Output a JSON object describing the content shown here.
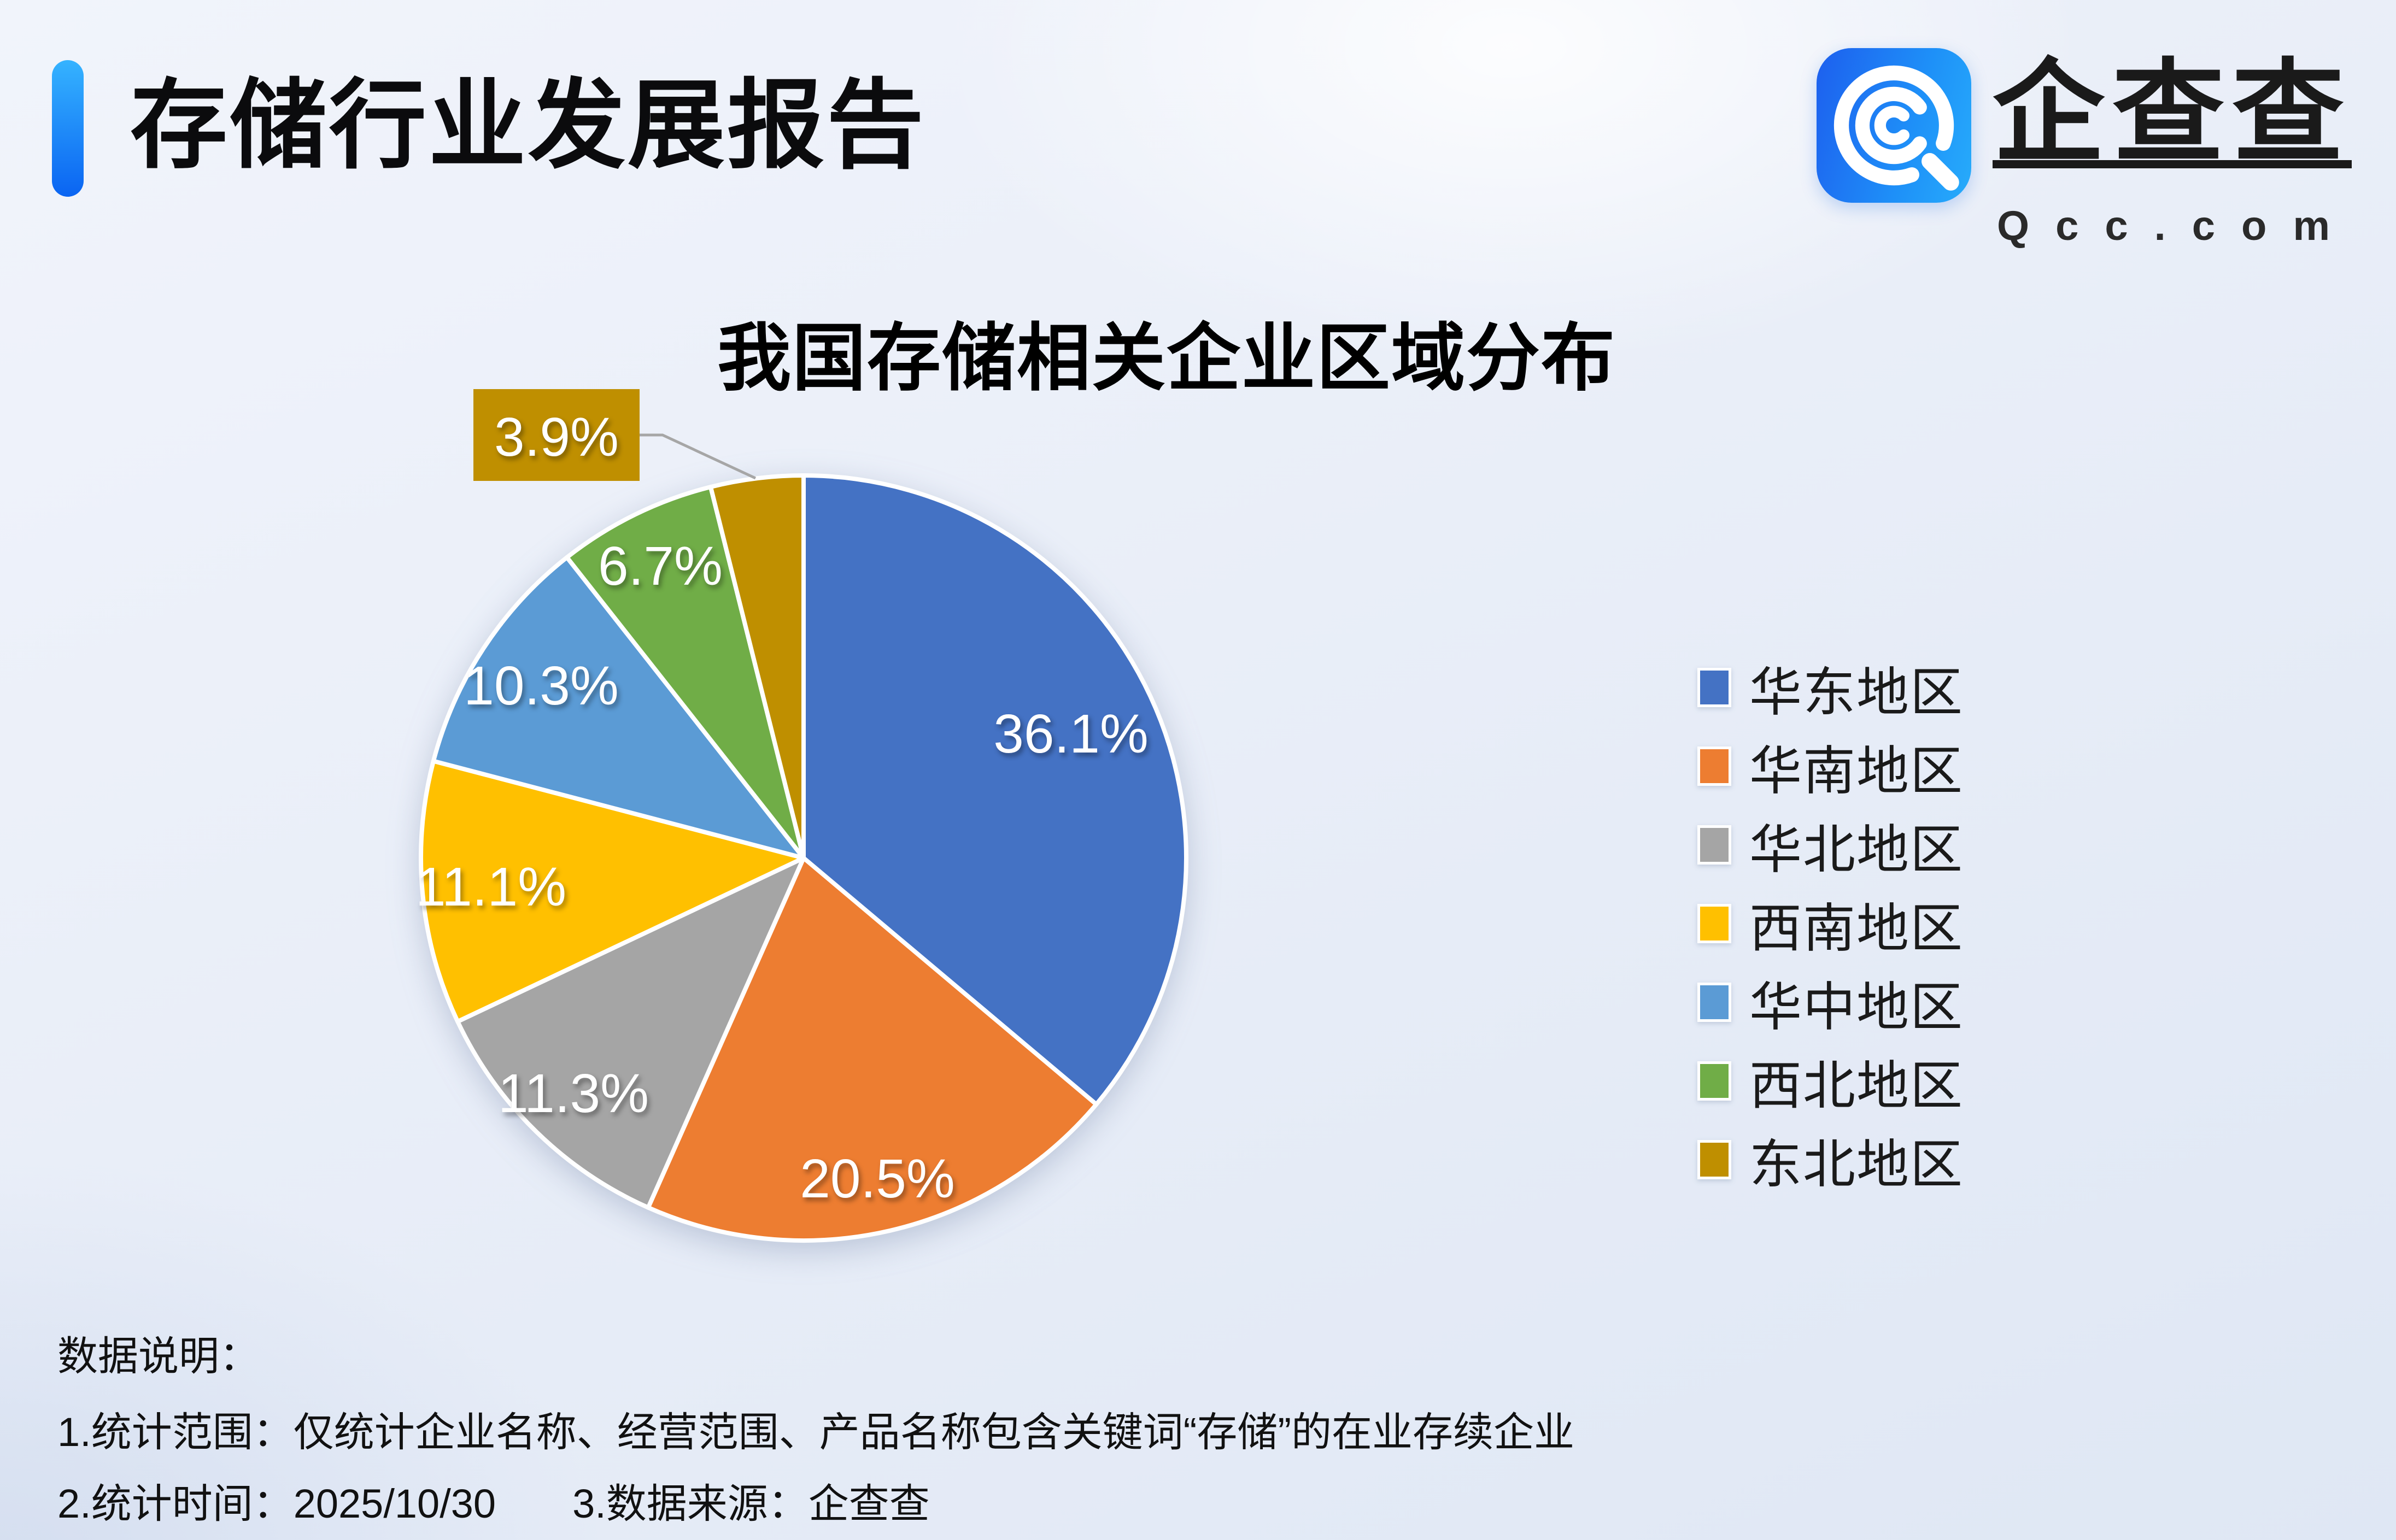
{
  "page": {
    "title": "存储行业发展报告"
  },
  "brand": {
    "name": "企查查",
    "domain": "Qcc.com",
    "icon": "qcc-spiral-magnifier-icon",
    "icon_bg_gradient": [
      "#1D5FEE",
      "#27ACFB"
    ]
  },
  "chart_data": {
    "type": "pie",
    "title": "我国存储相关企业区域分布",
    "categories": [
      "华东地区",
      "华南地区",
      "华北地区",
      "西南地区",
      "华中地区",
      "西北地区",
      "东北地区"
    ],
    "values": [
      36.1,
      20.5,
      11.3,
      11.1,
      10.3,
      6.7,
      3.9
    ],
    "labels": [
      "36.1%",
      "20.5%",
      "11.3%",
      "11.1%",
      "10.3%",
      "6.7%",
      "3.9%"
    ],
    "colors": [
      "#4472C4",
      "#ED7D31",
      "#A5A5A5",
      "#FFC000",
      "#5B9BD5",
      "#70AD47",
      "#BF8F00"
    ],
    "legend_position": "right",
    "start_angle_deg": 0,
    "direction": "clockwise",
    "callout": {
      "index": 6,
      "label": "3.9%",
      "leader_color": "#A6A6A6"
    }
  },
  "notes": {
    "heading": "数据说明：",
    "line1": "1.统计范围：仅统计企业名称、经营范围、产品名称包含关键词“存储”的在业存续企业",
    "line2_left": "2.统计时间：2025/10/30",
    "line2_right": "3.数据来源：企查查"
  }
}
